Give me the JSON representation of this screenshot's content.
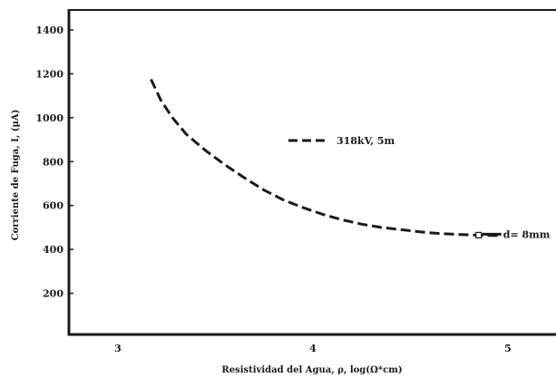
{
  "chart_data": {
    "type": "line",
    "title": "",
    "xlabel": "Resistividad del Agua, ρ, log(Ω*cm)",
    "ylabel": "Corriente de Fuga, I, (μA)",
    "xlim": [
      2.75,
      5.25
    ],
    "ylim": [
      0,
      1500
    ],
    "xticks": [
      3,
      4,
      5
    ],
    "yticks": [
      200,
      400,
      600,
      800,
      1000,
      1200,
      1400
    ],
    "grid": false,
    "legend_position": "center",
    "series": [
      {
        "name": "318kV, 5m",
        "style": "dashed",
        "color": "#1a1a1a",
        "x": [
          3.17,
          3.22,
          3.28,
          3.35,
          3.45,
          3.55,
          3.65,
          3.75,
          3.85,
          3.95,
          4.05,
          4.15,
          4.25,
          4.35,
          4.45,
          4.55,
          4.65,
          4.75,
          4.85,
          4.95
        ],
        "y": [
          1175,
          1080,
          1000,
          925,
          850,
          785,
          725,
          670,
          625,
          590,
          560,
          535,
          515,
          500,
          490,
          480,
          472,
          468,
          465,
          463
        ]
      }
    ],
    "annotations": [
      {
        "text": "d= 8mm",
        "x": 4.85,
        "y": 465
      }
    ]
  }
}
